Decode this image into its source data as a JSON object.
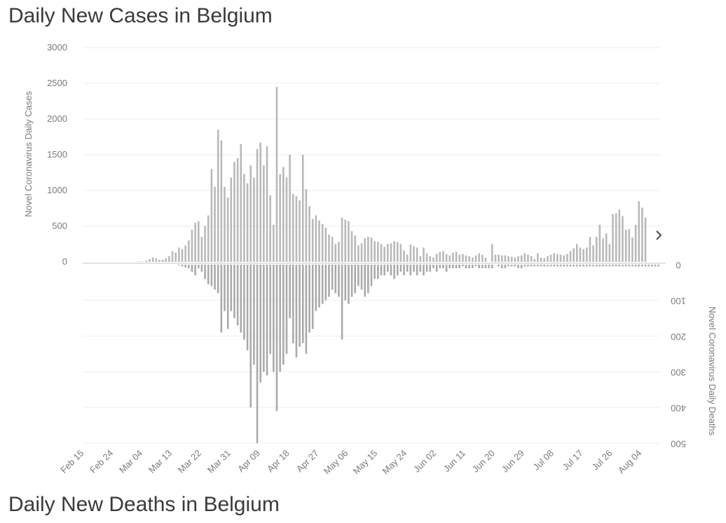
{
  "page": {
    "title_top": "Daily New Cases in Belgium",
    "title_bottom": "Daily New Deaths in Belgium"
  },
  "chart_data": {
    "type": "bar",
    "start_date": "Feb 15",
    "x_tick_labels": [
      "Feb 15",
      "Feb 24",
      "Mar 04",
      "Mar 13",
      "Mar 22",
      "Mar 31",
      "Apr 09",
      "Apr 18",
      "Apr 27",
      "May 06",
      "May 15",
      "May 24",
      "Jun 02",
      "Jun 11",
      "Jun 20",
      "Jun 29",
      "Jul 08",
      "Jul 17",
      "Jul 26",
      "Aug 04"
    ],
    "left_axis": {
      "label": "Novel Coronavirus Daily Cases",
      "ylim": [
        0,
        3000
      ],
      "ticks": [
        0,
        500,
        1000,
        1500,
        2000,
        2500,
        3000
      ]
    },
    "right_axis": {
      "label": "Novel Coronavirus Daily Deaths",
      "ylim": [
        0,
        500
      ],
      "inverted": true,
      "ticks": [
        0,
        100,
        200,
        300,
        400,
        500
      ],
      "tick_labels": [
        "0",
        "100",
        "200",
        "300",
        "400",
        "500"
      ]
    },
    "series": [
      {
        "name": "Daily Cases",
        "values": [
          0,
          0,
          0,
          0,
          0,
          0,
          0,
          0,
          0,
          0,
          0,
          0,
          0,
          0,
          0,
          0,
          2,
          8,
          5,
          20,
          40,
          60,
          50,
          30,
          30,
          50,
          80,
          150,
          130,
          200,
          180,
          230,
          300,
          450,
          550,
          570,
          350,
          500,
          650,
          1300,
          1050,
          1850,
          1700,
          1050,
          900,
          1180,
          1400,
          1450,
          1650,
          1230,
          1100,
          1350,
          1180,
          1580,
          1670,
          1350,
          1620,
          930,
          520,
          2450,
          1230,
          1330,
          1180,
          1500,
          950,
          920,
          860,
          1500,
          1020,
          780,
          600,
          650,
          580,
          530,
          480,
          380,
          350,
          250,
          280,
          620,
          590,
          570,
          430,
          370,
          230,
          260,
          330,
          350,
          340,
          290,
          280,
          250,
          210,
          250,
          260,
          290,
          280,
          250,
          160,
          100,
          240,
          220,
          200,
          80,
          200,
          120,
          80,
          60,
          110,
          140,
          150,
          110,
          90,
          130,
          140,
          100,
          110,
          90,
          80,
          60,
          90,
          120,
          100,
          60,
          0,
          250,
          100,
          100,
          90,
          90,
          80,
          70,
          60,
          80,
          90,
          120,
          100,
          80,
          40,
          120,
          60,
          50,
          80,
          100,
          120,
          110,
          100,
          90,
          110,
          150,
          190,
          250,
          200,
          180,
          200,
          350,
          230,
          350,
          520,
          330,
          400,
          250,
          670,
          680,
          730,
          640,
          450,
          460,
          340,
          520,
          850,
          760,
          620
        ]
      },
      {
        "name": "Daily Deaths",
        "values": [
          0,
          0,
          0,
          0,
          0,
          0,
          0,
          0,
          0,
          0,
          0,
          0,
          0,
          0,
          0,
          0,
          0,
          0,
          0,
          0,
          0,
          0,
          0,
          0,
          0,
          0,
          0,
          0,
          0,
          2,
          5,
          8,
          10,
          20,
          30,
          10,
          20,
          40,
          55,
          60,
          70,
          80,
          190,
          130,
          180,
          130,
          150,
          170,
          190,
          210,
          240,
          400,
          280,
          500,
          330,
          300,
          310,
          250,
          300,
          410,
          300,
          280,
          250,
          150,
          220,
          260,
          230,
          220,
          250,
          190,
          180,
          130,
          120,
          110,
          100,
          90,
          70,
          80,
          90,
          210,
          100,
          110,
          90,
          80,
          60,
          70,
          90,
          80,
          60,
          40,
          40,
          30,
          30,
          20,
          30,
          40,
          30,
          20,
          30,
          20,
          30,
          20,
          30,
          20,
          30,
          20,
          20,
          10,
          20,
          10,
          10,
          20,
          10,
          10,
          10,
          10,
          5,
          10,
          10,
          10,
          5,
          10,
          10,
          10,
          10,
          10,
          0,
          5,
          10,
          10,
          5,
          5,
          5,
          10,
          10,
          5,
          5,
          5,
          5,
          5,
          5,
          5,
          5,
          5,
          5,
          5,
          5,
          5,
          5,
          5,
          5,
          5,
          5,
          5,
          5,
          5,
          5,
          5,
          5,
          5,
          5,
          5,
          5,
          5,
          5,
          5,
          5,
          5,
          5,
          5,
          5,
          5,
          5,
          5,
          5,
          5,
          5
        ]
      }
    ]
  }
}
